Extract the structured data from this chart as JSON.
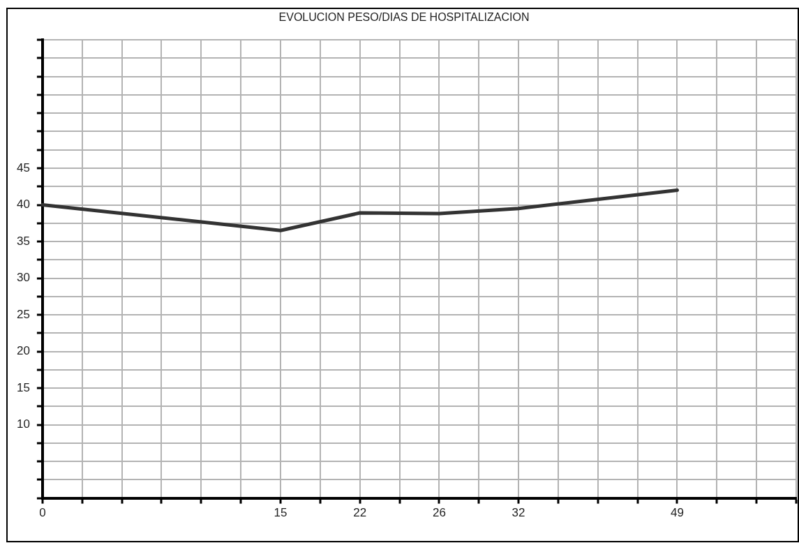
{
  "chart_data": {
    "type": "line",
    "title": "EVOLUCION PESO/DIAS DE HOSPITALIZACION",
    "categories": [
      "0",
      null,
      null,
      null,
      null,
      null,
      "15",
      null,
      "22",
      null,
      "26",
      null,
      "32",
      null,
      null,
      null,
      "49",
      null,
      null,
      null
    ],
    "series": [
      {
        "color": "#333333",
        "values": [
          40,
          null,
          null,
          null,
          null,
          null,
          36.5,
          null,
          38.9,
          null,
          38.8,
          null,
          39.5,
          null,
          null,
          null,
          42.0,
          null,
          null,
          null
        ]
      }
    ],
    "ylim": [
      0,
      62.5
    ],
    "yticks": [
      {
        "value": 0,
        "label": null
      },
      {
        "value": 2.5,
        "label": null
      },
      {
        "value": 5,
        "label": null
      },
      {
        "value": 7.5,
        "label": null
      },
      10,
      {
        "value": 12.5,
        "label": null
      },
      15,
      {
        "value": 17.5,
        "label": null
      },
      20,
      {
        "value": 22.5,
        "label": null
      },
      25,
      {
        "value": 27.5,
        "label": null
      },
      30,
      {
        "value": 32.5,
        "label": null
      },
      35,
      {
        "value": 37.5,
        "label": null
      },
      40,
      {
        "value": 42.5,
        "label": null
      },
      45,
      {
        "value": 47.5,
        "label": null
      },
      {
        "value": 50,
        "label": null
      },
      {
        "value": 52.5,
        "label": null
      },
      {
        "value": 55,
        "label": null
      },
      {
        "value": 57.5,
        "label": null
      },
      {
        "value": 60,
        "label": null
      },
      {
        "value": 62.5,
        "label": null
      }
    ],
    "grid": true,
    "legend": false,
    "marker": "none",
    "line_style": "solid"
  }
}
